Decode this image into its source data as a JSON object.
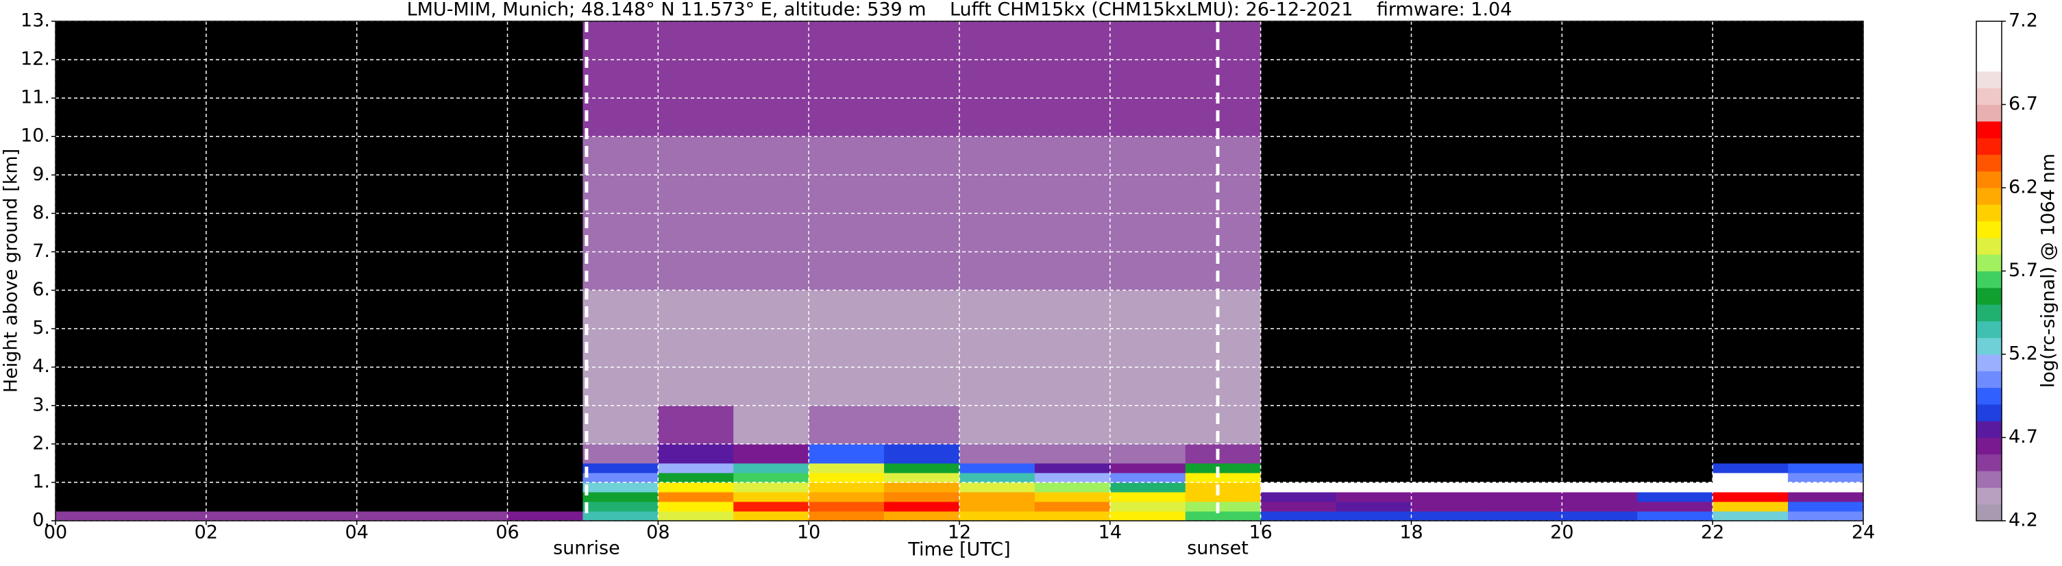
{
  "chart_data": {
    "type": "heatmap",
    "title": "LMU-MIM, Munich; 48.148° N 11.573° E, altitude: 539 m    Lufft CHM15kx (CHM15kxLMU): 26-12-2021    firmware: 1.04",
    "xlabel": "Time [UTC]",
    "ylabel": "Height above ground [km]",
    "colorbar_label": "log(rc-signal) @ 1064 nm",
    "xlim": [
      0,
      24
    ],
    "xticks": [
      {
        "value": 0,
        "label": "00"
      },
      {
        "value": 2,
        "label": "02"
      },
      {
        "value": 4,
        "label": "04"
      },
      {
        "value": 6,
        "label": "06"
      },
      {
        "value": 8,
        "label": "08"
      },
      {
        "value": 10,
        "label": "10"
      },
      {
        "value": 12,
        "label": "12"
      },
      {
        "value": 14,
        "label": "14"
      },
      {
        "value": 16,
        "label": "16"
      },
      {
        "value": 18,
        "label": "18"
      },
      {
        "value": 20,
        "label": "20"
      },
      {
        "value": 22,
        "label": "22"
      },
      {
        "value": 24,
        "label": "24"
      }
    ],
    "ylim": [
      0,
      13
    ],
    "yticks": [
      {
        "value": 0,
        "label": "0."
      },
      {
        "value": 1,
        "label": "1."
      },
      {
        "value": 2,
        "label": "2."
      },
      {
        "value": 3,
        "label": "3."
      },
      {
        "value": 4,
        "label": "4."
      },
      {
        "value": 5,
        "label": "5."
      },
      {
        "value": 6,
        "label": "6."
      },
      {
        "value": 7,
        "label": "7."
      },
      {
        "value": 8,
        "label": "8."
      },
      {
        "value": 9,
        "label": "9."
      },
      {
        "value": 10,
        "label": "10."
      },
      {
        "value": 11,
        "label": "11."
      },
      {
        "value": 12,
        "label": "12."
      },
      {
        "value": 13,
        "label": "13."
      }
    ],
    "grid": true,
    "clim": [
      4.2,
      7.2
    ],
    "cticks": [
      4.2,
      4.7,
      5.2,
      5.7,
      6.2,
      6.7,
      7.2
    ],
    "under_color": "#000000",
    "colors": [
      "#a89ab0",
      "#b8a0c0",
      "#a070b0",
      "#8a3c9c",
      "#7a1a90",
      "#5a1aa0",
      "#2040e0",
      "#3060ff",
      "#6e8cff",
      "#9ab0ff",
      "#6fd0d8",
      "#40c0b0",
      "#20b070",
      "#10a030",
      "#40d060",
      "#a0f060",
      "#e0f040",
      "#ffef00",
      "#ffd000",
      "#ffaa00",
      "#ff8800",
      "#ff5500",
      "#ff2000",
      "#ff0000",
      "#e8b0b0",
      "#f0c8c8",
      "#f0e0e0",
      "#ffffff",
      "#ffffff",
      "#ffffff"
    ],
    "x_edges": [
      0,
      1,
      2,
      3,
      4,
      5,
      6,
      7,
      8,
      9,
      10,
      11,
      12,
      13,
      14,
      15,
      16,
      17,
      18,
      19,
      20,
      21,
      22,
      23,
      24
    ],
    "y_edges": [
      0,
      0.25,
      0.5,
      0.75,
      1,
      1.25,
      1.5,
      2,
      3,
      4,
      6,
      8,
      10,
      13
    ],
    "z": [
      [
        4.5,
        4.5,
        4.5,
        4.5,
        4.5,
        4.5,
        4.6,
        5.3,
        5.8,
        6.0,
        6.2,
        6.1,
        6.0,
        6.0,
        5.9,
        5.6,
        4.8,
        4.8,
        4.8,
        4.8,
        4.8,
        4.9,
        5.2,
        5.0
      ],
      [
        3.8,
        3.8,
        3.8,
        3.8,
        3.8,
        3.8,
        4.0,
        5.4,
        5.9,
        6.4,
        6.3,
        6.5,
        6.1,
        6.2,
        5.8,
        5.7,
        4.6,
        4.7,
        4.6,
        4.6,
        4.6,
        4.6,
        6.0,
        4.9
      ],
      [
        3.8,
        3.8,
        3.8,
        3.8,
        3.8,
        3.8,
        3.9,
        5.5,
        6.2,
        6.0,
        6.1,
        6.2,
        6.1,
        6.0,
        5.9,
        6.0,
        4.7,
        4.6,
        4.6,
        4.6,
        4.6,
        4.8,
        6.5,
        4.6
      ],
      [
        3.8,
        3.8,
        3.8,
        3.8,
        3.8,
        3.8,
        3.9,
        5.2,
        5.9,
        5.8,
        6.0,
        6.1,
        5.8,
        5.7,
        5.4,
        6.0,
        6.9,
        6.9,
        6.9,
        6.9,
        6.9,
        6.9,
        6.9,
        6.9
      ],
      [
        3.8,
        3.8,
        3.8,
        3.8,
        3.8,
        3.8,
        3.8,
        5.0,
        5.5,
        5.6,
        5.9,
        5.8,
        5.3,
        5.1,
        5.0,
        5.9,
        3.8,
        3.8,
        3.8,
        3.8,
        3.8,
        3.8,
        6.9,
        5.0
      ],
      [
        3.8,
        3.8,
        3.8,
        3.8,
        3.8,
        3.8,
        3.8,
        4.8,
        5.1,
        5.3,
        5.8,
        5.5,
        4.9,
        4.7,
        4.6,
        5.5,
        3.8,
        3.8,
        3.8,
        3.8,
        3.8,
        3.8,
        4.8,
        4.9
      ],
      [
        3.8,
        3.8,
        3.8,
        3.8,
        3.8,
        3.8,
        3.8,
        4.4,
        4.7,
        4.6,
        4.9,
        4.8,
        4.4,
        4.4,
        4.4,
        4.5,
        3.8,
        3.8,
        3.8,
        3.8,
        3.8,
        3.8,
        3.8,
        3.8
      ],
      [
        3.8,
        3.8,
        3.8,
        3.8,
        3.8,
        3.8,
        3.8,
        4.3,
        4.5,
        4.3,
        4.4,
        4.4,
        4.3,
        4.3,
        4.3,
        4.3,
        3.8,
        3.9,
        3.8,
        3.8,
        3.8,
        3.8,
        3.8,
        3.8
      ],
      [
        3.8,
        3.8,
        3.8,
        3.8,
        3.8,
        3.8,
        3.8,
        4.3,
        4.3,
        4.3,
        4.3,
        4.3,
        4.3,
        4.3,
        4.3,
        4.3,
        3.8,
        3.8,
        3.8,
        3.8,
        3.8,
        3.8,
        3.8,
        3.8
      ],
      [
        3.9,
        3.9,
        3.9,
        3.9,
        3.9,
        3.9,
        3.9,
        4.3,
        4.3,
        4.3,
        4.3,
        4.3,
        4.3,
        4.3,
        4.3,
        4.3,
        3.9,
        3.9,
        3.9,
        3.9,
        3.9,
        3.9,
        3.9,
        3.9
      ],
      [
        4.0,
        4.0,
        4.0,
        4.0,
        4.0,
        4.0,
        4.0,
        4.4,
        4.4,
        4.4,
        4.4,
        4.4,
        4.4,
        4.4,
        4.4,
        4.4,
        4.0,
        4.0,
        4.0,
        4.0,
        4.0,
        4.0,
        4.0,
        4.0
      ],
      [
        4.0,
        4.0,
        4.0,
        4.0,
        4.0,
        4.0,
        4.0,
        4.4,
        4.4,
        4.4,
        4.4,
        4.4,
        4.4,
        4.4,
        4.4,
        4.4,
        4.0,
        4.0,
        4.0,
        4.0,
        4.0,
        4.0,
        4.0,
        4.0
      ],
      [
        4.1,
        4.1,
        4.1,
        4.1,
        4.1,
        4.1,
        4.1,
        4.5,
        4.5,
        4.5,
        4.5,
        4.5,
        4.5,
        4.5,
        4.5,
        4.5,
        4.1,
        4.1,
        4.1,
        4.1,
        4.1,
        4.1,
        4.1,
        4.1
      ]
    ],
    "annotations": [
      {
        "text": "sunrise",
        "x": 7.05
      },
      {
        "text": "sunset",
        "x": 15.43
      }
    ]
  }
}
